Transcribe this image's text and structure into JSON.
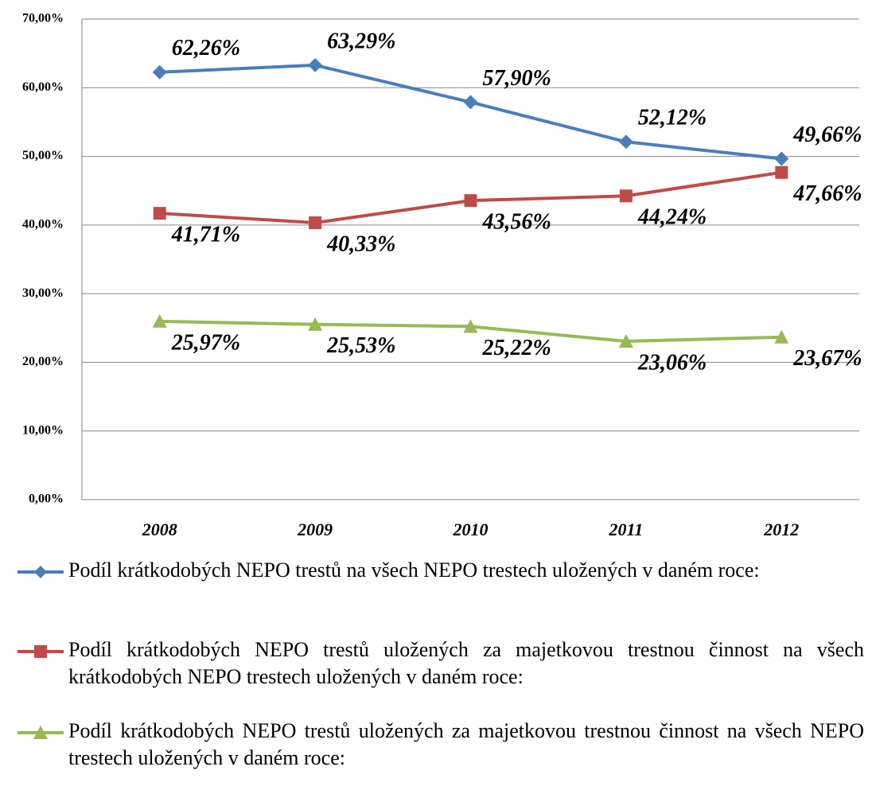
{
  "chart_data": {
    "type": "line",
    "categories": [
      "2008",
      "2009",
      "2010",
      "2011",
      "2012"
    ],
    "series": [
      {
        "name": "Podíl krátkodobých NEPO trestů na všech NEPO trestech uložených v daném roce:",
        "color": "#4a7ebb",
        "marker": "diamond",
        "values": [
          62.26,
          63.29,
          57.9,
          52.12,
          49.66
        ],
        "value_labels": [
          "62,26%",
          "63,29%",
          "57,90%",
          "52,12%",
          "49,66%"
        ]
      },
      {
        "name": "Podíl krátkodobých NEPO trestů uložených za majetkovou trestnou činnost na všech krátkodobých NEPO trestech uložených v daném roce:",
        "color": "#be4b48",
        "marker": "square",
        "values": [
          41.71,
          40.33,
          43.56,
          44.24,
          47.66
        ],
        "value_labels": [
          "41,71%",
          "40,33%",
          "43,56%",
          "44,24%",
          "47,66%"
        ]
      },
      {
        "name": "Podíl krátkodobých NEPO trestů uložených za majetkovou trestnou činnost na všech NEPO trestech uložených v daném roce:",
        "color": "#98b954",
        "marker": "triangle",
        "values": [
          25.97,
          25.53,
          25.22,
          23.06,
          23.67
        ],
        "value_labels": [
          "25,97%",
          "25,53%",
          "25,22%",
          "23,06%",
          "23,67%"
        ]
      }
    ],
    "ylim": [
      0,
      70
    ],
    "yticks": [
      {
        "value": 0,
        "label": "0,00%"
      },
      {
        "value": 10,
        "label": "10,00%"
      },
      {
        "value": 20,
        "label": "20,00%"
      },
      {
        "value": 30,
        "label": "30,00%"
      },
      {
        "value": 40,
        "label": "40,00%"
      },
      {
        "value": 50,
        "label": "50,00%"
      },
      {
        "value": 60,
        "label": "60,00%"
      },
      {
        "value": 70,
        "label": "70,00%"
      }
    ],
    "grid": true,
    "legend": "bottom"
  }
}
